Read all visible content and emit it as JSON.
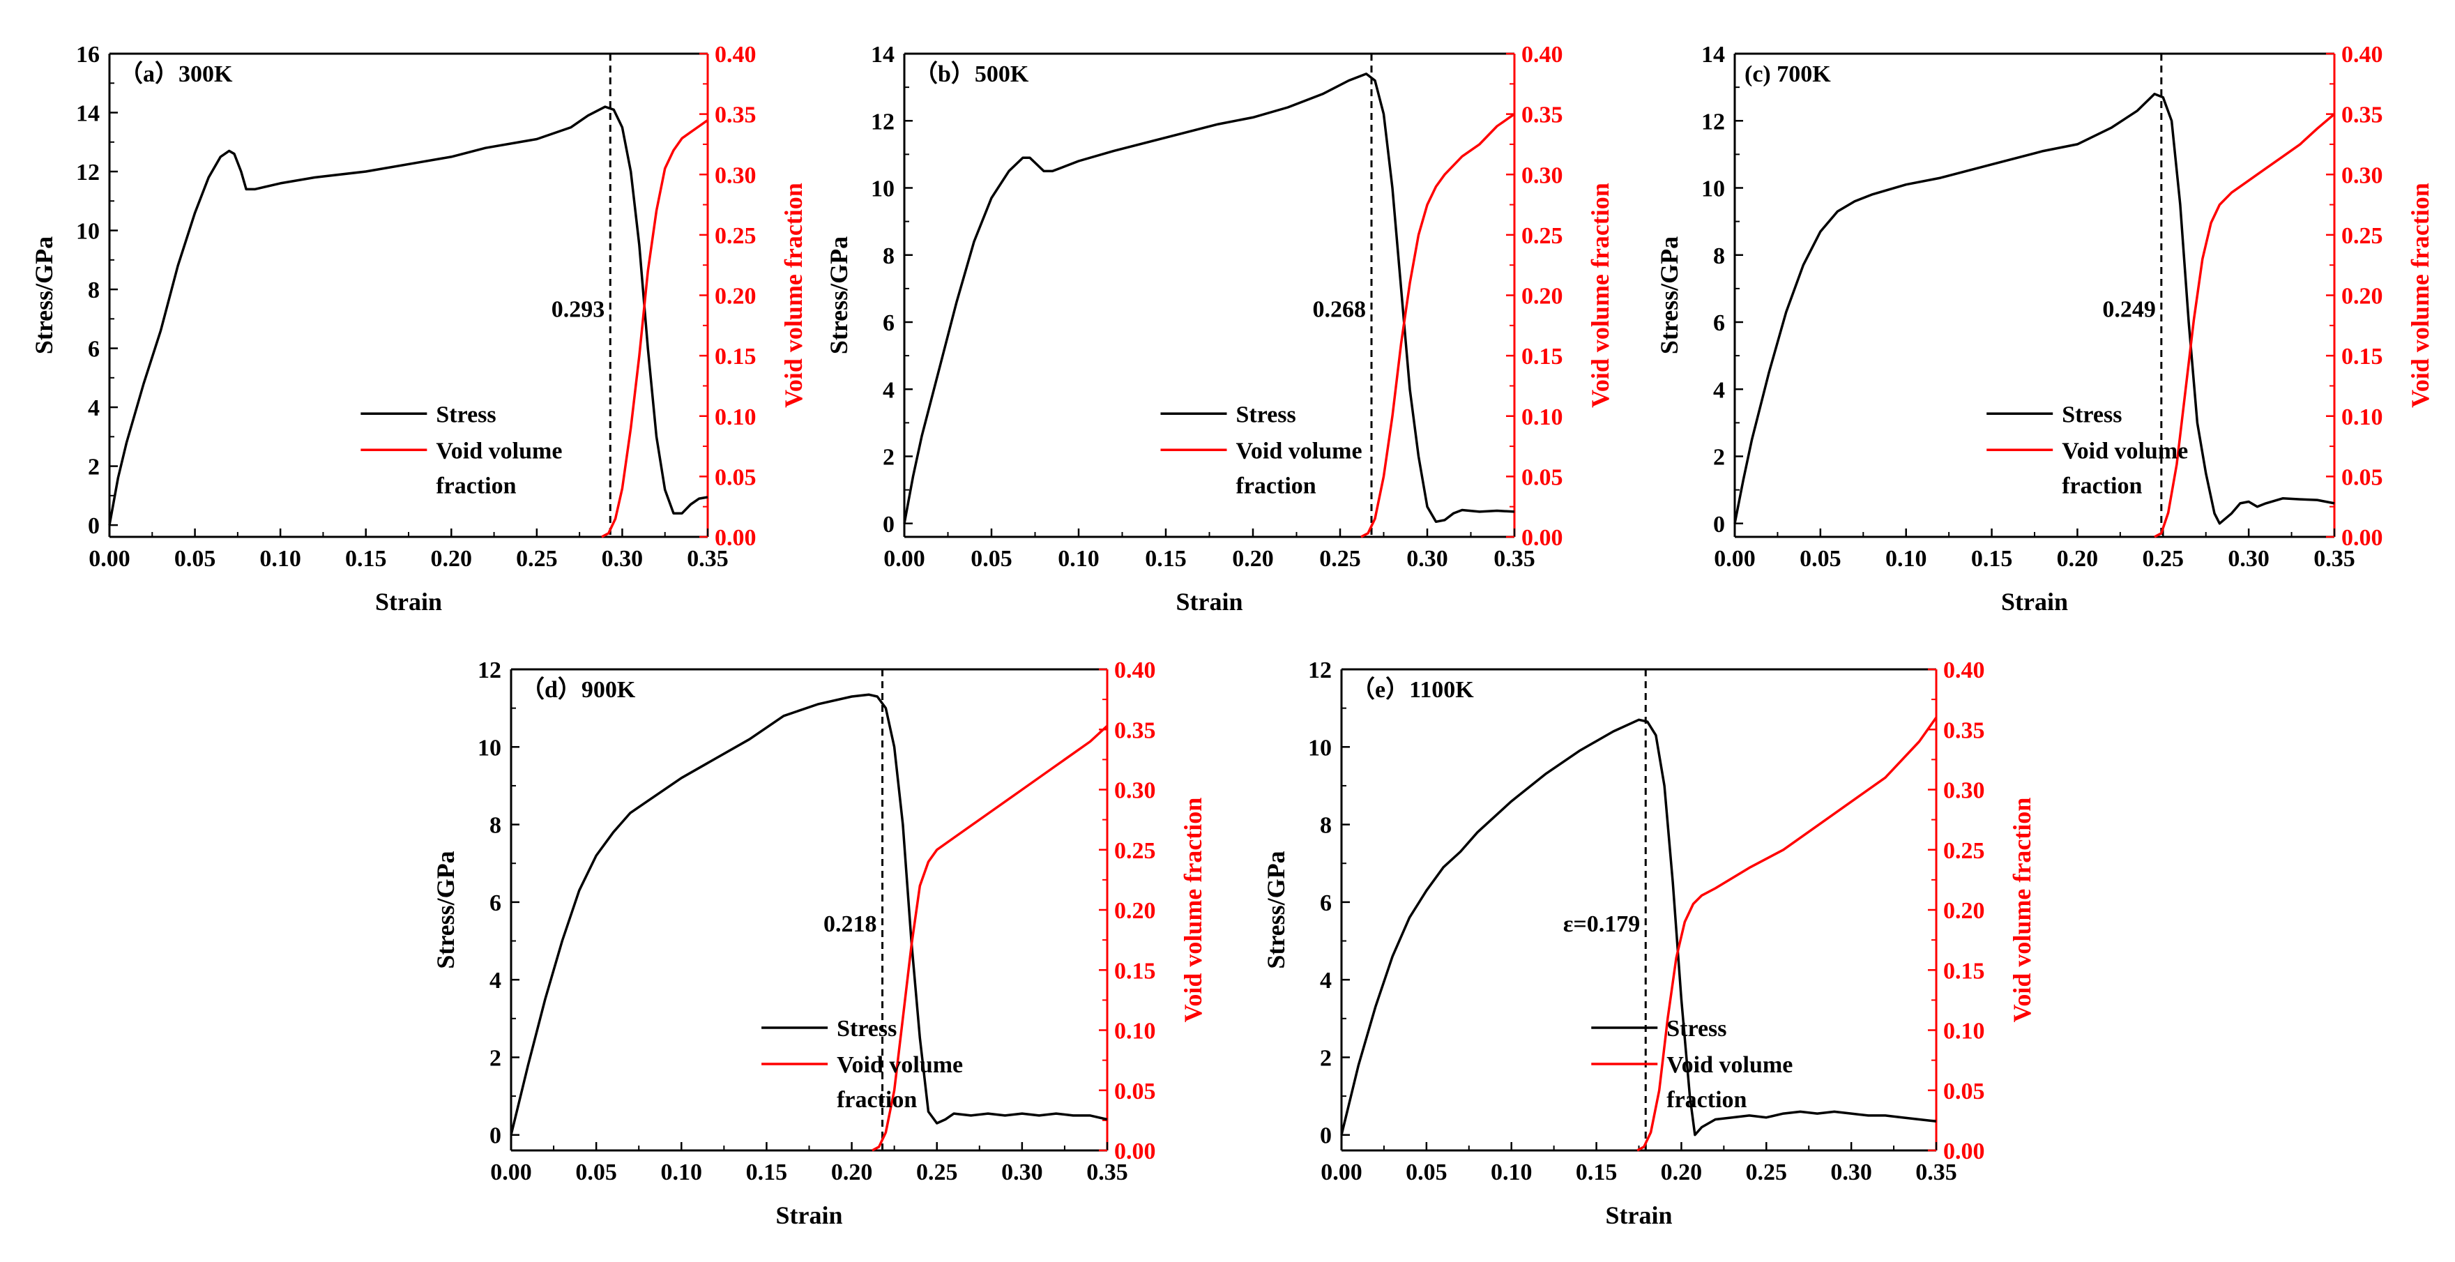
{
  "figure": {
    "x_label": "Strain",
    "y_left_label": "Stress/GPa",
    "y_right_label": "Void volume fraction",
    "legend": {
      "stress": "Stress",
      "void_line1": "Void volume",
      "void_line2": "fraction"
    }
  },
  "colors": {
    "stress": "#000000",
    "void": "#ff0000",
    "axis": "#000000"
  },
  "chart_data": [
    {
      "id": "a",
      "type": "line",
      "title": "（a）300K",
      "xlim": [
        0,
        0.35
      ],
      "xticks": [
        "0.00",
        "0.05",
        "0.10",
        "0.15",
        "0.20",
        "0.25",
        "0.30",
        "0.35"
      ],
      "ylim": [
        -0.4,
        16
      ],
      "yticks": [
        0,
        2,
        4,
        6,
        8,
        10,
        12,
        14,
        16
      ],
      "y2lim": [
        0,
        0.4
      ],
      "y2ticks": [
        "0.00",
        "0.05",
        "0.10",
        "0.15",
        "0.20",
        "0.25",
        "0.30",
        "0.35",
        "0.40"
      ],
      "fracture_strain": 0.293,
      "fracture_label": "0.293",
      "stress": [
        [
          0,
          0
        ],
        [
          0.005,
          1.6
        ],
        [
          0.01,
          2.8
        ],
        [
          0.02,
          4.8
        ],
        [
          0.03,
          6.6
        ],
        [
          0.04,
          8.8
        ],
        [
          0.05,
          10.6
        ],
        [
          0.058,
          11.8
        ],
        [
          0.065,
          12.5
        ],
        [
          0.07,
          12.7
        ],
        [
          0.073,
          12.6
        ],
        [
          0.077,
          12.0
        ],
        [
          0.08,
          11.4
        ],
        [
          0.085,
          11.4
        ],
        [
          0.1,
          11.6
        ],
        [
          0.12,
          11.8
        ],
        [
          0.15,
          12.0
        ],
        [
          0.18,
          12.3
        ],
        [
          0.2,
          12.5
        ],
        [
          0.22,
          12.8
        ],
        [
          0.25,
          13.1
        ],
        [
          0.27,
          13.5
        ],
        [
          0.28,
          13.9
        ],
        [
          0.29,
          14.2
        ],
        [
          0.295,
          14.1
        ],
        [
          0.3,
          13.5
        ],
        [
          0.305,
          12.0
        ],
        [
          0.31,
          9.5
        ],
        [
          0.315,
          6.0
        ],
        [
          0.32,
          3.0
        ],
        [
          0.325,
          1.2
        ],
        [
          0.33,
          0.4
        ],
        [
          0.335,
          0.4
        ],
        [
          0.34,
          0.7
        ],
        [
          0.345,
          0.9
        ],
        [
          0.35,
          0.95
        ]
      ],
      "void": [
        [
          0.288,
          0
        ],
        [
          0.292,
          0.003
        ],
        [
          0.296,
          0.015
        ],
        [
          0.3,
          0.04
        ],
        [
          0.305,
          0.09
        ],
        [
          0.31,
          0.15
        ],
        [
          0.315,
          0.22
        ],
        [
          0.32,
          0.27
        ],
        [
          0.325,
          0.305
        ],
        [
          0.33,
          0.32
        ],
        [
          0.335,
          0.33
        ],
        [
          0.34,
          0.335
        ],
        [
          0.345,
          0.34
        ],
        [
          0.35,
          0.345
        ]
      ],
      "legend_pos": "lower-center",
      "label_side": "left"
    },
    {
      "id": "b",
      "type": "line",
      "title": "（b）500K",
      "xlim": [
        0,
        0.35
      ],
      "xticks": [
        "0.00",
        "0.05",
        "0.10",
        "0.15",
        "0.20",
        "0.25",
        "0.30",
        "0.35"
      ],
      "ylim": [
        -0.4,
        14
      ],
      "yticks": [
        0,
        2,
        4,
        6,
        8,
        10,
        12,
        14
      ],
      "y2lim": [
        0,
        0.4
      ],
      "y2ticks": [
        "0.00",
        "0.05",
        "0.10",
        "0.15",
        "0.20",
        "0.25",
        "0.30",
        "0.35",
        "0.40"
      ],
      "fracture_strain": 0.268,
      "fracture_label": "0.268",
      "stress": [
        [
          0,
          0
        ],
        [
          0.005,
          1.4
        ],
        [
          0.01,
          2.6
        ],
        [
          0.02,
          4.6
        ],
        [
          0.03,
          6.6
        ],
        [
          0.04,
          8.4
        ],
        [
          0.05,
          9.7
        ],
        [
          0.06,
          10.5
        ],
        [
          0.068,
          10.9
        ],
        [
          0.072,
          10.9
        ],
        [
          0.076,
          10.7
        ],
        [
          0.08,
          10.5
        ],
        [
          0.085,
          10.5
        ],
        [
          0.1,
          10.8
        ],
        [
          0.12,
          11.1
        ],
        [
          0.15,
          11.5
        ],
        [
          0.18,
          11.9
        ],
        [
          0.2,
          12.1
        ],
        [
          0.22,
          12.4
        ],
        [
          0.24,
          12.8
        ],
        [
          0.255,
          13.2
        ],
        [
          0.265,
          13.4
        ],
        [
          0.27,
          13.2
        ],
        [
          0.275,
          12.2
        ],
        [
          0.28,
          10.0
        ],
        [
          0.285,
          7.0
        ],
        [
          0.29,
          4.0
        ],
        [
          0.295,
          2.0
        ],
        [
          0.3,
          0.5
        ],
        [
          0.305,
          0.05
        ],
        [
          0.31,
          0.1
        ],
        [
          0.315,
          0.3
        ],
        [
          0.32,
          0.4
        ],
        [
          0.33,
          0.35
        ],
        [
          0.34,
          0.38
        ],
        [
          0.35,
          0.35
        ]
      ],
      "void": [
        [
          0.262,
          0
        ],
        [
          0.266,
          0.003
        ],
        [
          0.27,
          0.015
        ],
        [
          0.275,
          0.05
        ],
        [
          0.28,
          0.1
        ],
        [
          0.285,
          0.16
        ],
        [
          0.29,
          0.21
        ],
        [
          0.295,
          0.25
        ],
        [
          0.3,
          0.275
        ],
        [
          0.305,
          0.29
        ],
        [
          0.31,
          0.3
        ],
        [
          0.32,
          0.315
        ],
        [
          0.33,
          0.325
        ],
        [
          0.34,
          0.34
        ],
        [
          0.35,
          0.35
        ]
      ],
      "legend_pos": "lower-center",
      "label_side": "left"
    },
    {
      "id": "c",
      "type": "line",
      "title": "(c) 700K",
      "xlim": [
        0,
        0.35
      ],
      "xticks": [
        "0.00",
        "0.05",
        "0.10",
        "0.15",
        "0.20",
        "0.25",
        "0.30",
        "0.35"
      ],
      "ylim": [
        -0.4,
        14
      ],
      "yticks": [
        0,
        2,
        4,
        6,
        8,
        10,
        12,
        14
      ],
      "y2lim": [
        0,
        0.4
      ],
      "y2ticks": [
        "0.00",
        "0.05",
        "0.10",
        "0.15",
        "0.20",
        "0.25",
        "0.30",
        "0.35",
        "0.40"
      ],
      "fracture_strain": 0.249,
      "fracture_label": "0.249",
      "stress": [
        [
          0,
          0
        ],
        [
          0.005,
          1.3
        ],
        [
          0.01,
          2.5
        ],
        [
          0.02,
          4.5
        ],
        [
          0.03,
          6.3
        ],
        [
          0.04,
          7.7
        ],
        [
          0.05,
          8.7
        ],
        [
          0.06,
          9.3
        ],
        [
          0.07,
          9.6
        ],
        [
          0.08,
          9.8
        ],
        [
          0.1,
          10.1
        ],
        [
          0.12,
          10.3
        ],
        [
          0.15,
          10.7
        ],
        [
          0.18,
          11.1
        ],
        [
          0.2,
          11.3
        ],
        [
          0.22,
          11.8
        ],
        [
          0.235,
          12.3
        ],
        [
          0.245,
          12.8
        ],
        [
          0.25,
          12.7
        ],
        [
          0.255,
          12.0
        ],
        [
          0.26,
          9.5
        ],
        [
          0.265,
          6.0
        ],
        [
          0.27,
          3.0
        ],
        [
          0.275,
          1.5
        ],
        [
          0.28,
          0.3
        ],
        [
          0.283,
          0.0
        ],
        [
          0.29,
          0.3
        ],
        [
          0.295,
          0.6
        ],
        [
          0.3,
          0.65
        ],
        [
          0.305,
          0.5
        ],
        [
          0.31,
          0.6
        ],
        [
          0.32,
          0.75
        ],
        [
          0.33,
          0.72
        ],
        [
          0.34,
          0.7
        ],
        [
          0.35,
          0.6
        ]
      ],
      "void": [
        [
          0.245,
          0
        ],
        [
          0.249,
          0.003
        ],
        [
          0.253,
          0.02
        ],
        [
          0.258,
          0.06
        ],
        [
          0.263,
          0.12
        ],
        [
          0.268,
          0.18
        ],
        [
          0.273,
          0.23
        ],
        [
          0.278,
          0.26
        ],
        [
          0.283,
          0.275
        ],
        [
          0.29,
          0.285
        ],
        [
          0.3,
          0.295
        ],
        [
          0.31,
          0.305
        ],
        [
          0.32,
          0.315
        ],
        [
          0.33,
          0.325
        ],
        [
          0.34,
          0.338
        ],
        [
          0.35,
          0.35
        ]
      ],
      "legend_pos": "lower-center",
      "label_side": "left"
    },
    {
      "id": "d",
      "type": "line",
      "title": "（d）900K",
      "xlim": [
        0,
        0.35
      ],
      "xticks": [
        "0.00",
        "0.05",
        "0.10",
        "0.15",
        "0.20",
        "0.25",
        "0.30",
        "0.35"
      ],
      "ylim": [
        -0.4,
        12
      ],
      "yticks": [
        0,
        2,
        4,
        6,
        8,
        10,
        12
      ],
      "y2lim": [
        0,
        0.4
      ],
      "y2ticks": [
        "0.00",
        "0.05",
        "0.10",
        "0.15",
        "0.20",
        "0.25",
        "0.30",
        "0.35",
        "0.40"
      ],
      "fracture_strain": 0.218,
      "fracture_label": "0.218",
      "stress": [
        [
          0,
          0
        ],
        [
          0.005,
          0.9
        ],
        [
          0.01,
          1.8
        ],
        [
          0.02,
          3.5
        ],
        [
          0.03,
          5.0
        ],
        [
          0.04,
          6.3
        ],
        [
          0.05,
          7.2
        ],
        [
          0.06,
          7.8
        ],
        [
          0.07,
          8.3
        ],
        [
          0.08,
          8.6
        ],
        [
          0.1,
          9.2
        ],
        [
          0.12,
          9.7
        ],
        [
          0.14,
          10.2
        ],
        [
          0.16,
          10.8
        ],
        [
          0.18,
          11.1
        ],
        [
          0.2,
          11.3
        ],
        [
          0.21,
          11.35
        ],
        [
          0.215,
          11.3
        ],
        [
          0.22,
          11.0
        ],
        [
          0.225,
          10.0
        ],
        [
          0.23,
          8.0
        ],
        [
          0.235,
          5.0
        ],
        [
          0.24,
          2.5
        ],
        [
          0.245,
          0.6
        ],
        [
          0.25,
          0.3
        ],
        [
          0.255,
          0.4
        ],
        [
          0.26,
          0.55
        ],
        [
          0.27,
          0.5
        ],
        [
          0.28,
          0.55
        ],
        [
          0.29,
          0.5
        ],
        [
          0.3,
          0.55
        ],
        [
          0.31,
          0.5
        ],
        [
          0.32,
          0.55
        ],
        [
          0.33,
          0.5
        ],
        [
          0.34,
          0.5
        ],
        [
          0.35,
          0.4
        ]
      ],
      "void": [
        [
          0.212,
          0
        ],
        [
          0.216,
          0.003
        ],
        [
          0.22,
          0.015
        ],
        [
          0.225,
          0.05
        ],
        [
          0.23,
          0.11
        ],
        [
          0.235,
          0.17
        ],
        [
          0.24,
          0.22
        ],
        [
          0.245,
          0.24
        ],
        [
          0.25,
          0.25
        ],
        [
          0.26,
          0.26
        ],
        [
          0.28,
          0.28
        ],
        [
          0.3,
          0.3
        ],
        [
          0.32,
          0.32
        ],
        [
          0.34,
          0.34
        ],
        [
          0.35,
          0.353
        ]
      ],
      "legend_pos": "lower-center",
      "label_side": "left"
    },
    {
      "id": "e",
      "type": "line",
      "title": "（e）1100K",
      "xlim": [
        0,
        0.35
      ],
      "xticks": [
        "0.00",
        "0.05",
        "0.10",
        "0.15",
        "0.20",
        "0.25",
        "0.30",
        "0.35"
      ],
      "ylim": [
        -0.4,
        12
      ],
      "yticks": [
        0,
        2,
        4,
        6,
        8,
        10,
        12
      ],
      "y2lim": [
        0,
        0.4
      ],
      "y2ticks": [
        "0.00",
        "0.05",
        "0.10",
        "0.15",
        "0.20",
        "0.25",
        "0.30",
        "0.35",
        "0.40"
      ],
      "fracture_strain": 0.179,
      "fracture_label": "ε=0.179",
      "stress": [
        [
          0,
          0
        ],
        [
          0.005,
          0.9
        ],
        [
          0.01,
          1.8
        ],
        [
          0.02,
          3.3
        ],
        [
          0.03,
          4.6
        ],
        [
          0.04,
          5.6
        ],
        [
          0.05,
          6.3
        ],
        [
          0.06,
          6.9
        ],
        [
          0.07,
          7.3
        ],
        [
          0.08,
          7.8
        ],
        [
          0.1,
          8.6
        ],
        [
          0.12,
          9.3
        ],
        [
          0.14,
          9.9
        ],
        [
          0.16,
          10.4
        ],
        [
          0.175,
          10.7
        ],
        [
          0.18,
          10.65
        ],
        [
          0.185,
          10.3
        ],
        [
          0.19,
          9.0
        ],
        [
          0.195,
          6.5
        ],
        [
          0.2,
          3.5
        ],
        [
          0.205,
          1.0
        ],
        [
          0.208,
          0.0
        ],
        [
          0.212,
          0.2
        ],
        [
          0.22,
          0.4
        ],
        [
          0.23,
          0.45
        ],
        [
          0.24,
          0.5
        ],
        [
          0.25,
          0.45
        ],
        [
          0.26,
          0.55
        ],
        [
          0.27,
          0.6
        ],
        [
          0.28,
          0.55
        ],
        [
          0.29,
          0.6
        ],
        [
          0.3,
          0.55
        ],
        [
          0.31,
          0.5
        ],
        [
          0.32,
          0.5
        ],
        [
          0.33,
          0.45
        ],
        [
          0.34,
          0.4
        ],
        [
          0.35,
          0.35
        ]
      ],
      "void": [
        [
          0.174,
          0
        ],
        [
          0.178,
          0.003
        ],
        [
          0.182,
          0.015
        ],
        [
          0.187,
          0.05
        ],
        [
          0.192,
          0.11
        ],
        [
          0.197,
          0.16
        ],
        [
          0.202,
          0.19
        ],
        [
          0.207,
          0.205
        ],
        [
          0.212,
          0.212
        ],
        [
          0.22,
          0.218
        ],
        [
          0.24,
          0.235
        ],
        [
          0.26,
          0.25
        ],
        [
          0.28,
          0.27
        ],
        [
          0.3,
          0.29
        ],
        [
          0.32,
          0.31
        ],
        [
          0.34,
          0.34
        ],
        [
          0.35,
          0.36
        ]
      ],
      "legend_pos": "lower-center",
      "label_side": "left"
    }
  ]
}
